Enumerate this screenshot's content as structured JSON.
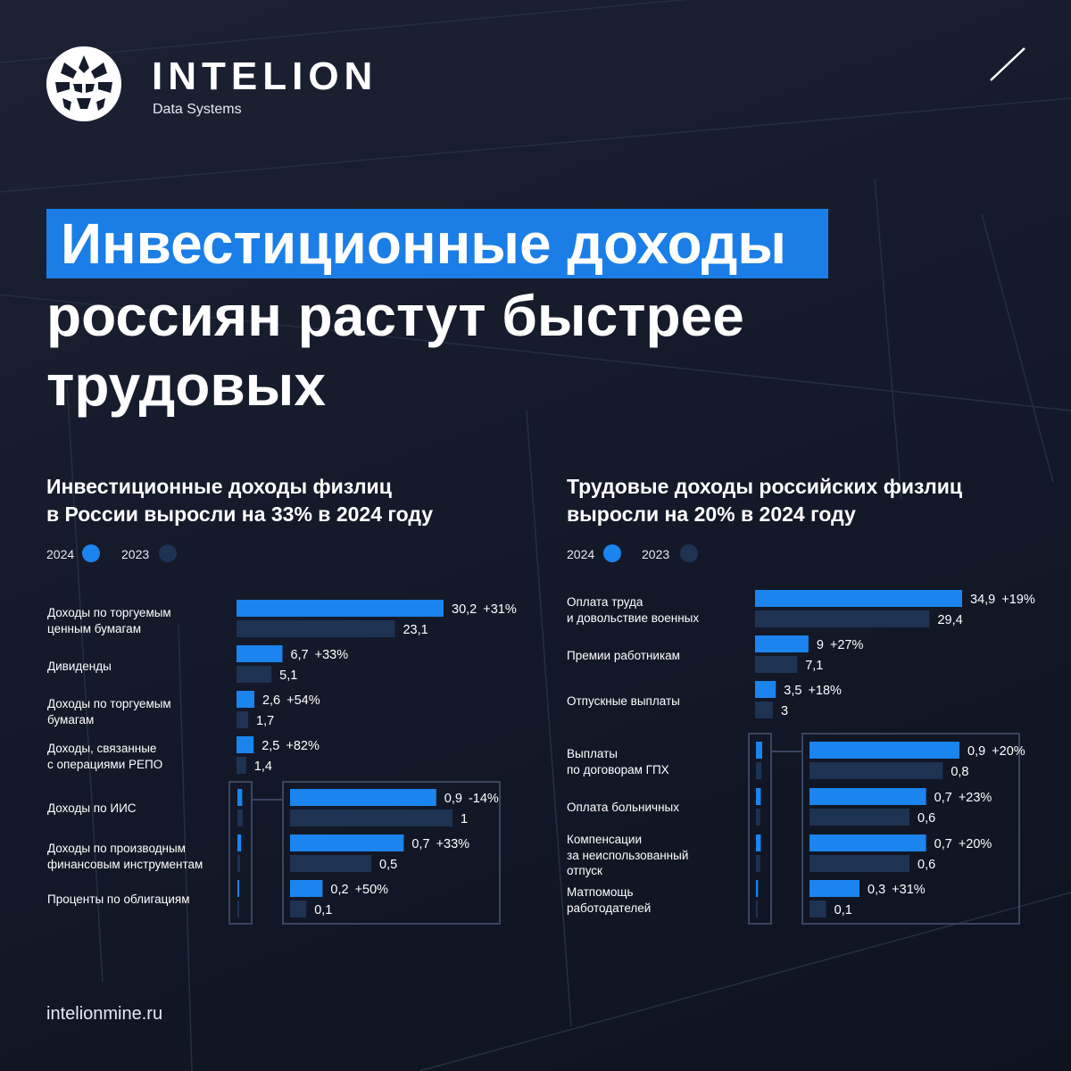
{
  "brand": {
    "name": "INTELION",
    "sub": "Data Systems",
    "site": "intelionmine.ru"
  },
  "headline": {
    "line1": "Инвестиционные доходы",
    "line2": "россиян растут быстрее",
    "line3": "трудовых"
  },
  "colors": {
    "y2024": "#1b84ee",
    "y2023": "#1e3252",
    "highlight": "#1a7ee6"
  },
  "legend": {
    "y2024": "2024",
    "y2023": "2023"
  },
  "chart_data": [
    {
      "type": "bar",
      "orientation": "horizontal",
      "title_line1": "Инвестиционные доходы физлиц",
      "title_line2": "в России выросли на 33% в 2024 году",
      "legend": [
        "2024",
        "2023"
      ],
      "categories": [
        [
          "Доходы по торгуемым",
          "ценным бумагам"
        ],
        [
          "Дивиденды"
        ],
        [
          "Доходы по торгуемым",
          "бумагам"
        ],
        [
          "Доходы, связанные",
          "с операциями РЕПО"
        ],
        [
          "Доходы по ИИС"
        ],
        [
          "Доходы по производным",
          "финансовым инструментам"
        ],
        [
          "Проценты по облигациям"
        ]
      ],
      "series": [
        {
          "name": "2024",
          "values": [
            30.2,
            6.7,
            2.6,
            2.5,
            0.9,
            0.7,
            0.2
          ],
          "labels": [
            "30,2",
            "6,7",
            "2,6",
            "2,5",
            "0,9",
            "0,7",
            "0,2"
          ]
        },
        {
          "name": "2023",
          "values": [
            23.1,
            5.1,
            1.7,
            1.4,
            1,
            0.5,
            0.1
          ],
          "labels": [
            "23,1",
            "5,1",
            "1,7",
            "1,4",
            "1",
            "0,5",
            "0,1"
          ]
        }
      ],
      "changes": [
        "+31%",
        "+33%",
        "+54%",
        "+82%",
        "-14%",
        "+33%",
        "+50%"
      ],
      "zoomed_from_index": 4
    },
    {
      "type": "bar",
      "orientation": "horizontal",
      "title_line1": "Трудовые доходы российских физлиц",
      "title_line2": "выросли на 20% в 2024 году",
      "legend": [
        "2024",
        "2023"
      ],
      "categories": [
        [
          "Оплата труда",
          "и довольствие военных"
        ],
        [
          "Премии работникам"
        ],
        [
          "Отпускные выплаты"
        ],
        [
          "Выплаты",
          "по договорам ГПХ"
        ],
        [
          "Оплата больничных"
        ],
        [
          "Компенсации",
          "за неиспользованный",
          "отпуск"
        ],
        [
          "Матпомощь",
          "работодателей"
        ]
      ],
      "series": [
        {
          "name": "2024",
          "values": [
            34.9,
            9,
            3.5,
            0.9,
            0.7,
            0.7,
            0.3
          ],
          "labels": [
            "34,9",
            "9",
            "3,5",
            "0,9",
            "0,7",
            "0,7",
            "0,3"
          ]
        },
        {
          "name": "2023",
          "values": [
            29.4,
            7.1,
            3,
            0.8,
            0.6,
            0.6,
            0.1
          ],
          "labels": [
            "29,4",
            "7,1",
            "3",
            "0,8",
            "0,6",
            "0,6",
            "0,1"
          ]
        }
      ],
      "changes": [
        "+19%",
        "+27%",
        "+18%",
        "+20%",
        "+23%",
        "+20%",
        "+31%"
      ],
      "zoomed_from_index": 3
    }
  ]
}
